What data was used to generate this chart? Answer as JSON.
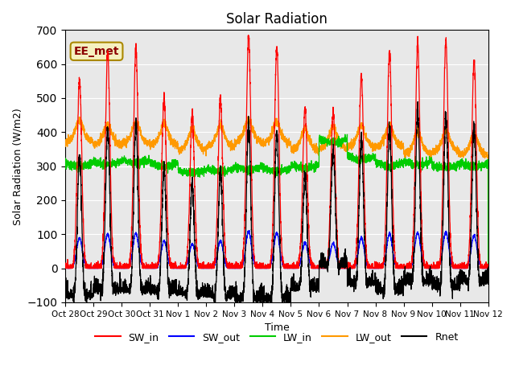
{
  "title": "Solar Radiation",
  "ylabel": "Solar Radiation (W/m2)",
  "xlabel": "Time",
  "ylim": [
    -100,
    700
  ],
  "yticks": [
    -100,
    0,
    100,
    200,
    300,
    400,
    500,
    600,
    700
  ],
  "x_tick_labels": [
    "Oct 28",
    "Oct 29",
    "Oct 30",
    "Oct 31",
    "Nov 1",
    "Nov 2",
    "Nov 3",
    "Nov 4",
    "Nov 5",
    "Nov 6",
    "Nov 7",
    "Nov 8",
    "Nov 9",
    "Nov 10",
    "Nov 11",
    "Nov 12"
  ],
  "annotation": "EE_met",
  "colors": {
    "SW_in": "#ff0000",
    "SW_out": "#0000ff",
    "LW_in": "#00cc00",
    "LW_out": "#ff9900",
    "Rnet": "#000000"
  },
  "bg_color": "#e8e8e8",
  "n_days": 15,
  "points_per_day": 288,
  "sw_in_peaks": [
    555,
    635,
    645,
    500,
    445,
    500,
    680,
    650,
    470,
    460,
    565,
    635,
    655,
    670,
    610
  ],
  "lw_in_base": [
    310,
    315,
    320,
    310,
    290,
    295,
    300,
    295,
    305,
    380,
    330,
    310,
    315,
    305,
    310
  ],
  "lw_out_base": [
    370,
    360,
    365,
    360,
    345,
    355,
    370,
    365,
    345,
    350,
    355,
    355,
    335,
    340,
    330
  ],
  "night_rnet": -50
}
